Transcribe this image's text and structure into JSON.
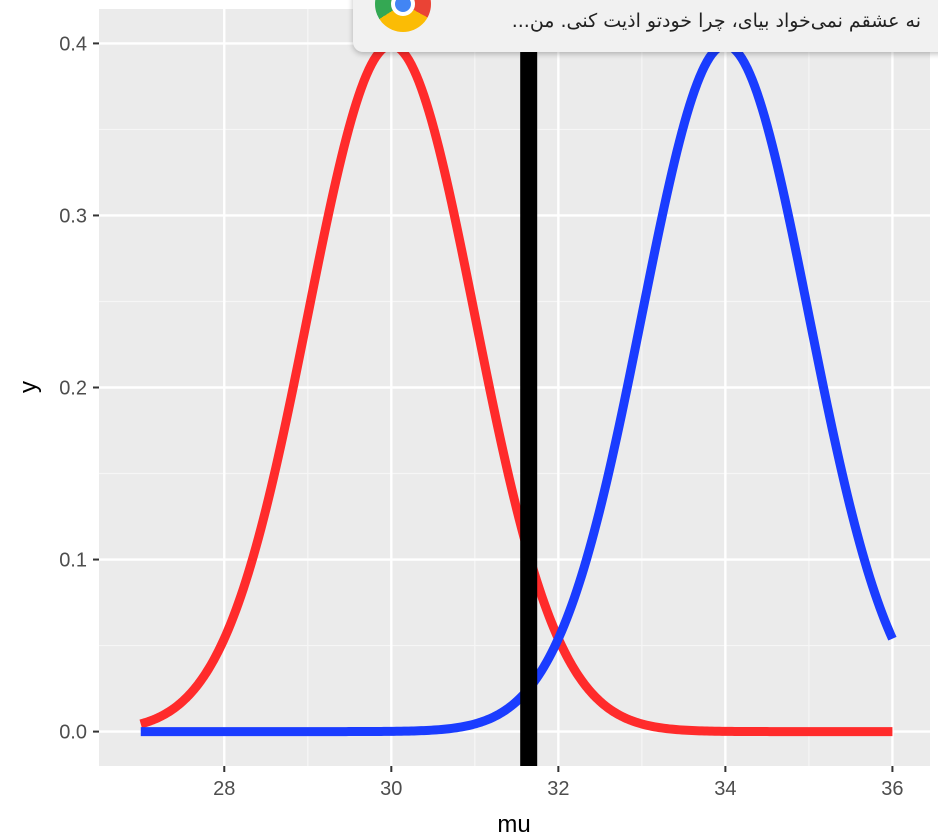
{
  "chart_data": {
    "type": "line",
    "title": "",
    "xlabel": "mu",
    "ylabel": "y",
    "xlim": [
      26.5,
      36.45
    ],
    "ylim": [
      -0.02,
      0.42
    ],
    "x_ticks": [
      28,
      30,
      32,
      34,
      36
    ],
    "y_ticks": [
      0.0,
      0.1,
      0.2,
      0.3,
      0.4
    ],
    "x_tick_labels": [
      "28",
      "30",
      "32",
      "34",
      "36"
    ],
    "y_tick_labels": [
      "0.0",
      "0.1",
      "0.2",
      "0.3",
      "0.4"
    ],
    "grid": true,
    "legend": "none",
    "series": [
      {
        "color": "#ff2b2b",
        "distribution": "normal",
        "mean": 30,
        "sd": 1,
        "x_range": [
          27,
          36
        ]
      },
      {
        "color": "#1a3cff",
        "distribution": "normal",
        "mean": 34,
        "sd": 1,
        "x_range": [
          27,
          36
        ]
      }
    ],
    "vline": {
      "x": 31.645,
      "color": "#000000"
    }
  },
  "notification": {
    "text": "نه عشقم نمی‌خواد بیای، چرا خودتو اذیت کنی. من...",
    "icon": "chrome-icon"
  }
}
